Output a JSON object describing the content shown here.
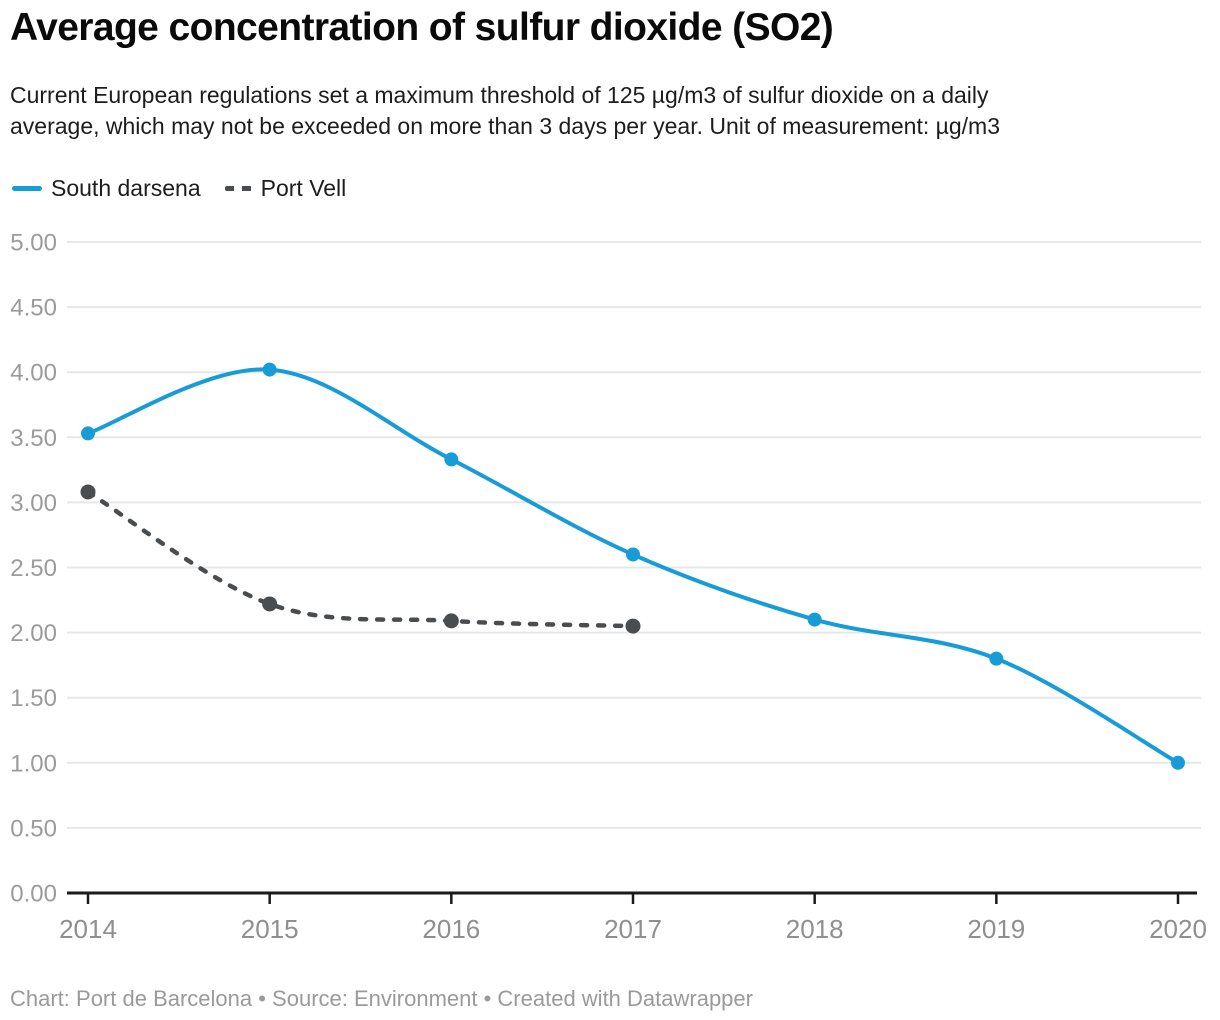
{
  "header": {
    "title": "Average concentration of sulfur dioxide (SO2)",
    "subtitle_lines": [
      "Current European regulations set a maximum threshold of 125 µg/m3 of sulfur dioxide on a daily",
      "average, which may not be exceeded on more than 3 days per year. Unit of measurement: µg/m3"
    ]
  },
  "footer": {
    "text": "Chart: Port de Barcelona • Source: Environment • Created with Datawrapper"
  },
  "chart_data": {
    "type": "line",
    "title": "Average concentration of sulfur dioxide (SO2)",
    "x": [
      "2014",
      "2015",
      "2016",
      "2017",
      "2018",
      "2019",
      "2020"
    ],
    "series": [
      {
        "name": "South darsena",
        "color": "#189cd8",
        "dashed": false,
        "values": [
          3.53,
          4.02,
          3.33,
          2.6,
          2.1,
          1.8,
          1.0
        ]
      },
      {
        "name": "Port Vell",
        "color": "#4a4d50",
        "dashed": true,
        "values": [
          3.08,
          2.22,
          2.09,
          2.05,
          null,
          null,
          null
        ]
      }
    ],
    "ylim": [
      0,
      5
    ],
    "y_tick_step": 0.5,
    "y_tick_decimals": 2,
    "grid": true,
    "legend_position": "top-left",
    "xlabel": "",
    "ylabel": "",
    "colors": {
      "grid_line": "#e7e7e7",
      "axis_line": "#1a1a1a",
      "y_tick_label": "#9b9b9b",
      "x_tick_label": "#8f8f8f"
    }
  }
}
